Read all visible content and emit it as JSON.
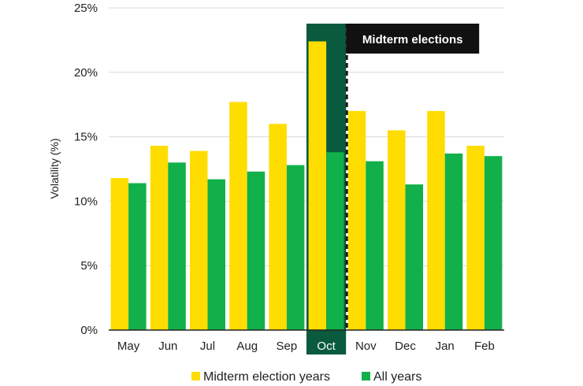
{
  "chart_data": {
    "type": "bar",
    "ylabel": "Volatility (%)",
    "ylim": [
      0,
      25
    ],
    "yticks": [
      0,
      5,
      10,
      15,
      20,
      25
    ],
    "ytick_labels": [
      "0%",
      "5%",
      "10%",
      "15%",
      "20%",
      "25%"
    ],
    "categories": [
      "May",
      "Jun",
      "Jul",
      "Aug",
      "Sep",
      "Oct",
      "Nov",
      "Dec",
      "Jan",
      "Feb"
    ],
    "series": [
      {
        "name": "Midterm election years",
        "color": "#FFDD00",
        "values": [
          11.8,
          14.3,
          13.9,
          17.7,
          16.0,
          22.4,
          17.0,
          15.5,
          17.0,
          14.3
        ]
      },
      {
        "name": "All years",
        "color": "#12B04A",
        "values": [
          11.4,
          13.0,
          11.7,
          12.3,
          12.8,
          13.8,
          13.1,
          11.3,
          13.7,
          13.5
        ]
      }
    ],
    "highlight": {
      "category": "Oct",
      "label": "Midterm elections",
      "color": "#0A5A3E"
    },
    "grid": "horizontal",
    "legend_position": "bottom"
  }
}
